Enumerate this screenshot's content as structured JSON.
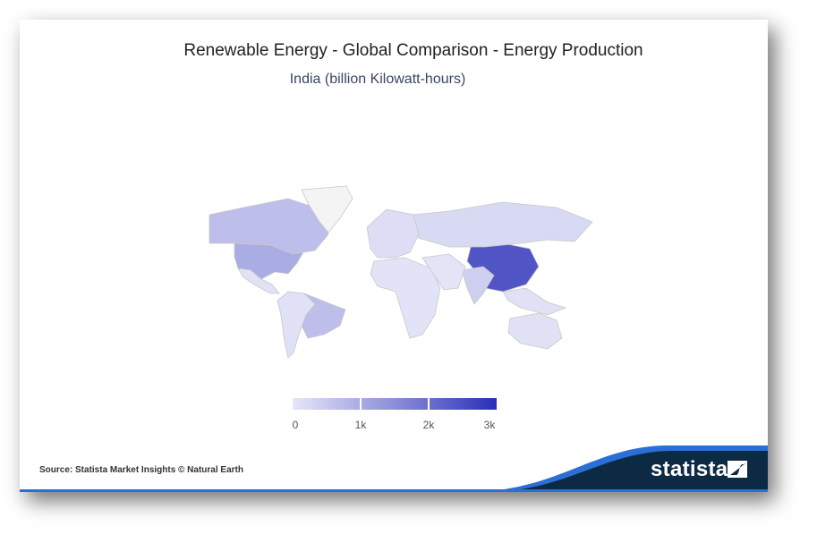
{
  "header": {
    "title": "Renewable Energy - Global Comparison - Energy Production",
    "subtitle": "India (billion Kilowatt-hours)"
  },
  "chart_data": {
    "type": "choropleth",
    "title": "Renewable Energy - Global Comparison - Energy Production",
    "subtitle": "India (billion Kilowatt-hours)",
    "color_scale": {
      "min": 0,
      "max": 3000,
      "ticks": [
        "0",
        "1k",
        "2k",
        "3k"
      ],
      "colors": [
        "#e6e6f8",
        "#2a2fb8"
      ]
    },
    "no_data_color": "#f4f4f4",
    "regions": [
      {
        "name": "China",
        "value": 2400
      },
      {
        "name": "United States",
        "value": 950
      },
      {
        "name": "Brazil",
        "value": 650
      },
      {
        "name": "Canada",
        "value": 650
      },
      {
        "name": "India",
        "value": 380
      },
      {
        "name": "Russia",
        "value": 220
      },
      {
        "name": "Europe",
        "value": 150
      },
      {
        "name": "Mexico",
        "value": 60
      },
      {
        "name": "South America (other)",
        "value": 100
      },
      {
        "name": "Africa",
        "value": 50
      },
      {
        "name": "Middle East",
        "value": 30
      },
      {
        "name": "Southeast Asia",
        "value": 80
      },
      {
        "name": "Australia",
        "value": 80
      },
      {
        "name": "Greenland",
        "value": null
      }
    ]
  },
  "footer": {
    "source": "Source: Statista Market Insights © Natural Earth",
    "brand": "statista"
  }
}
